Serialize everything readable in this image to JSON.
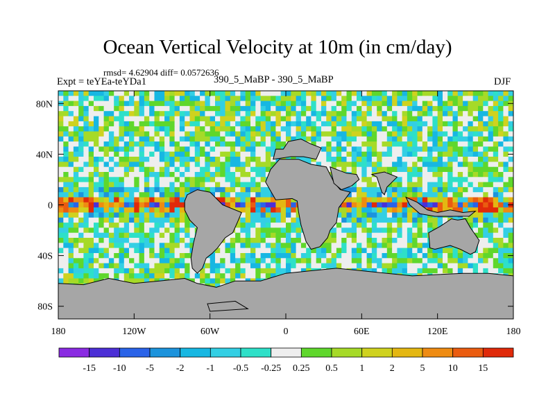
{
  "chart_data": {
    "type": "heatmap",
    "title": "Ocean Vertical Velocity at 10m (in cm/day)",
    "subtitle_stats": "rmsd= 4.62904 diff= 0.0572636",
    "subtitle_left": "Expt = teYEa-teYDa1",
    "subtitle_center": "390_5_MaBP - 390_5_MaBP",
    "subtitle_right": "DJF",
    "x_axis": {
      "range": [
        -180,
        180
      ],
      "tick_values": [
        -180,
        -120,
        -60,
        0,
        60,
        120,
        180
      ],
      "tick_labels": [
        "180",
        "120W",
        "60W",
        "0",
        "60E",
        "120E",
        "180"
      ]
    },
    "y_axis": {
      "range": [
        -90,
        90
      ],
      "tick_values": [
        80,
        40,
        0,
        -40,
        -80
      ],
      "tick_labels": [
        "80N",
        "40N",
        "0",
        "40S",
        "80S"
      ]
    },
    "colorbar": {
      "levels": [
        "-15",
        "-10",
        "-5",
        "-2",
        "-1",
        "-0.5",
        "-0.25",
        "0.25",
        "0.5",
        "1",
        "2",
        "5",
        "10",
        "15"
      ],
      "colors": [
        "#8a2be2",
        "#4c2fd6",
        "#2a63e8",
        "#1c93dc",
        "#17b7e2",
        "#33cfe4",
        "#2ee0c8",
        "#eeeeee",
        "#5fd72c",
        "#a6da28",
        "#cfd21f",
        "#e4b712",
        "#ee8b12",
        "#ea5c10",
        "#e02a0a"
      ]
    },
    "land_color": "#a6a6a6",
    "ocean_background": "#eeeeee"
  }
}
